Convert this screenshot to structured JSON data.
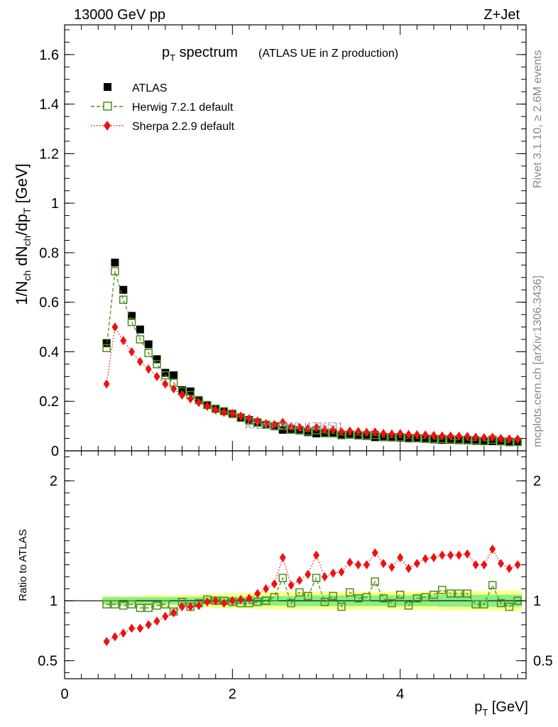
{
  "header": {
    "left": "13000 GeV pp",
    "right": "Z+Jet"
  },
  "side_labels": {
    "rivet": "Rivet 3.1.10, ≥ 2.6M events",
    "mcplots": "mcplots.cern.ch [arXiv:1306.3436]"
  },
  "watermark": "ATLAS_2019_I1736531",
  "colors": {
    "atlas": "#000000",
    "herwig": "#4d8c1a",
    "sherpa": "#ee1111",
    "band_inner": "#88ee88",
    "band_outer": "#ffff88"
  },
  "chart_data": [
    {
      "type": "scatter",
      "panel": "main",
      "title_main": "p",
      "title_sub": "T",
      "title_rest": " spectrum",
      "title_note": "(ATLAS UE in Z production)",
      "ylabel": "1/N_ch dN_ch/dp_T [GeV]",
      "xlim": [
        0,
        5.5
      ],
      "ylim": [
        0,
        1.72
      ],
      "yticks": [
        0,
        0.2,
        0.4,
        0.6,
        0.8,
        1,
        1.2,
        1.4,
        1.6
      ],
      "ytick_labels": [
        "0",
        "0.2",
        "0.4",
        "0.6",
        "0.8",
        "1",
        "1.2",
        "1.4",
        "1.6"
      ],
      "legend_position": "top-left",
      "x": [
        0.5,
        0.6,
        0.7,
        0.8,
        0.9,
        1.0,
        1.1,
        1.2,
        1.3,
        1.4,
        1.5,
        1.6,
        1.7,
        1.8,
        1.9,
        2.0,
        2.1,
        2.2,
        2.3,
        2.4,
        2.5,
        2.6,
        2.7,
        2.8,
        2.9,
        3.0,
        3.1,
        3.2,
        3.3,
        3.4,
        3.5,
        3.6,
        3.7,
        3.8,
        3.9,
        4.0,
        4.1,
        4.2,
        4.3,
        4.4,
        4.5,
        4.6,
        4.7,
        4.8,
        4.9,
        5.0,
        5.1,
        5.2,
        5.3,
        5.4
      ],
      "series": [
        {
          "name": "ATLAS",
          "marker": "square-filled",
          "values": [
            0.435,
            0.76,
            0.65,
            0.545,
            0.49,
            0.43,
            0.37,
            0.315,
            0.305,
            0.245,
            0.24,
            0.205,
            0.185,
            0.17,
            0.16,
            0.15,
            0.135,
            0.125,
            0.115,
            0.105,
            0.1,
            0.085,
            0.088,
            0.082,
            0.075,
            0.07,
            0.072,
            0.07,
            0.063,
            0.065,
            0.062,
            0.06,
            0.055,
            0.055,
            0.055,
            0.053,
            0.052,
            0.05,
            0.048,
            0.046,
            0.044,
            0.044,
            0.043,
            0.042,
            0.04,
            0.04,
            0.039,
            0.038,
            0.037,
            0.036
          ]
        },
        {
          "name": "Herwig 7.2.1 default",
          "marker": "square-open",
          "line": "dashed",
          "values": [
            0.415,
            0.725,
            0.61,
            0.52,
            0.45,
            0.395,
            0.35,
            0.305,
            0.275,
            0.24,
            0.225,
            0.205,
            0.185,
            0.17,
            0.16,
            0.149,
            0.133,
            0.122,
            0.113,
            0.105,
            0.1,
            0.1,
            0.085,
            0.084,
            0.078,
            0.083,
            0.071,
            0.071,
            0.063,
            0.066,
            0.062,
            0.062,
            0.064,
            0.056,
            0.054,
            0.055,
            0.05,
            0.051,
            0.049,
            0.048,
            0.048,
            0.046,
            0.045,
            0.044,
            0.042,
            0.039,
            0.045,
            0.039,
            0.035,
            0.036
          ]
        },
        {
          "name": "Sherpa 2.2.9 default",
          "marker": "diamond-filled",
          "line": "dotted",
          "values": [
            0.27,
            0.5,
            0.445,
            0.4,
            0.36,
            0.33,
            0.3,
            0.27,
            0.25,
            0.225,
            0.21,
            0.195,
            0.18,
            0.165,
            0.155,
            0.15,
            0.14,
            0.13,
            0.12,
            0.11,
            0.106,
            0.115,
            0.098,
            0.095,
            0.09,
            0.095,
            0.085,
            0.085,
            0.078,
            0.08,
            0.078,
            0.075,
            0.076,
            0.07,
            0.068,
            0.07,
            0.066,
            0.065,
            0.064,
            0.062,
            0.06,
            0.06,
            0.059,
            0.058,
            0.055,
            0.053,
            0.055,
            0.05,
            0.048,
            0.047
          ]
        }
      ]
    },
    {
      "type": "scatter",
      "panel": "ratio",
      "ylabel": "Ratio to ATLAS",
      "xlabel_main": "p",
      "xlabel_sub": "T",
      "xlabel_rest": " [GeV]",
      "xlim": [
        0,
        5.5
      ],
      "ylim": [
        0.35,
        2.25
      ],
      "yticks": [
        0.5,
        1,
        2
      ],
      "ytick_labels": [
        "0.5",
        "1",
        "2"
      ],
      "xticks": [
        0,
        2,
        4
      ],
      "xtick_labels": [
        "0",
        "2",
        "4"
      ],
      "reference_line": 1,
      "x": [
        0.5,
        0.6,
        0.7,
        0.8,
        0.9,
        1.0,
        1.1,
        1.2,
        1.3,
        1.4,
        1.5,
        1.6,
        1.7,
        1.8,
        1.9,
        2.0,
        2.1,
        2.2,
        2.3,
        2.4,
        2.5,
        2.6,
        2.7,
        2.8,
        2.9,
        3.0,
        3.1,
        3.2,
        3.3,
        3.4,
        3.5,
        3.6,
        3.7,
        3.8,
        3.9,
        4.0,
        4.1,
        4.2,
        4.3,
        4.4,
        4.5,
        4.6,
        4.7,
        4.8,
        4.9,
        5.0,
        5.1,
        5.2,
        5.3,
        5.4
      ],
      "band_inner_halfwidth": [
        0.03,
        0.03,
        0.03,
        0.03,
        0.03,
        0.03,
        0.03,
        0.03,
        0.03,
        0.03,
        0.03,
        0.03,
        0.03,
        0.035,
        0.035,
        0.035,
        0.035,
        0.035,
        0.035,
        0.04,
        0.04,
        0.04,
        0.04,
        0.045,
        0.045,
        0.045,
        0.045,
        0.045,
        0.045,
        0.045,
        0.045,
        0.045,
        0.045,
        0.045,
        0.045,
        0.045,
        0.045,
        0.045,
        0.045,
        0.045,
        0.05,
        0.05,
        0.05,
        0.05,
        0.05,
        0.05,
        0.05,
        0.05,
        0.05,
        0.05
      ],
      "band_outer_halfwidth": [
        0.04,
        0.04,
        0.04,
        0.04,
        0.04,
        0.045,
        0.045,
        0.045,
        0.045,
        0.05,
        0.05,
        0.05,
        0.055,
        0.06,
        0.06,
        0.06,
        0.065,
        0.065,
        0.07,
        0.07,
        0.075,
        0.075,
        0.075,
        0.075,
        0.075,
        0.075,
        0.075,
        0.075,
        0.075,
        0.075,
        0.075,
        0.075,
        0.075,
        0.075,
        0.075,
        0.075,
        0.075,
        0.075,
        0.075,
        0.075,
        0.08,
        0.08,
        0.08,
        0.08,
        0.08,
        0.08,
        0.08,
        0.085,
        0.085,
        0.085
      ],
      "series": [
        {
          "name": "Herwig 7.2.1 default",
          "marker": "square-open",
          "line": "dashed",
          "values": [
            0.97,
            0.97,
            0.96,
            0.97,
            0.94,
            0.94,
            0.96,
            0.97,
            0.91,
            0.99,
            0.95,
            0.98,
            1.01,
            1.0,
            1.0,
            0.99,
            0.98,
            0.98,
            0.99,
            1.0,
            1.03,
            1.19,
            0.98,
            1.07,
            1.04,
            1.19,
            0.99,
            1.04,
            0.95,
            1.07,
            1.02,
            1.03,
            1.16,
            1.02,
            0.98,
            1.05,
            0.96,
            1.02,
            1.03,
            1.05,
            1.09,
            1.06,
            1.06,
            1.06,
            0.97,
            0.97,
            1.13,
            0.98,
            0.95,
            1.0
          ]
        },
        {
          "name": "Sherpa 2.2.9 default",
          "marker": "diamond-filled",
          "line": "dotted",
          "values": [
            0.66,
            0.7,
            0.73,
            0.77,
            0.77,
            0.8,
            0.83,
            0.87,
            0.9,
            0.95,
            0.95,
            0.96,
            0.99,
            1.0,
            0.98,
            1.0,
            1.01,
            1.02,
            1.06,
            1.1,
            1.14,
            1.36,
            1.13,
            1.17,
            1.22,
            1.38,
            1.2,
            1.23,
            1.24,
            1.32,
            1.3,
            1.3,
            1.4,
            1.31,
            1.28,
            1.36,
            1.27,
            1.31,
            1.35,
            1.36,
            1.38,
            1.38,
            1.38,
            1.39,
            1.3,
            1.3,
            1.43,
            1.31,
            1.27,
            1.3
          ]
        }
      ]
    }
  ]
}
